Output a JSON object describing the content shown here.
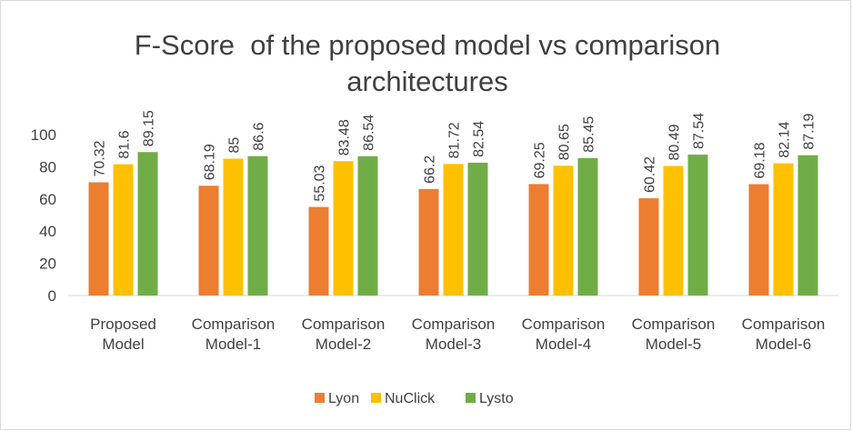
{
  "chart_data": {
    "type": "bar",
    "title": "F-Score  of the proposed model vs comparison architectures",
    "categories": [
      "Proposed Model",
      "Comparison Model-1",
      "Comparison Model-2",
      "Comparison Model-3",
      "Comparison Model-4",
      "Comparison Model-5",
      "Comparison Model-6"
    ],
    "series": [
      {
        "name": "Lyon",
        "color": "#ed7d31",
        "values": [
          70.32,
          68.19,
          55.03,
          66.2,
          69.25,
          60.42,
          69.18
        ]
      },
      {
        "name": "NuClick",
        "color": "#ffc000",
        "values": [
          81.6,
          85,
          83.48,
          81.72,
          80.65,
          80.49,
          82.14
        ]
      },
      {
        "name": "Lysto",
        "color": "#70ad47",
        "values": [
          89.15,
          86.6,
          86.54,
          82.54,
          85.45,
          87.54,
          87.19
        ]
      }
    ],
    "ylim": [
      0,
      100
    ],
    "yticks": [
      0,
      20,
      40,
      60,
      80,
      100
    ],
    "grid": false,
    "legend": "bottom"
  }
}
